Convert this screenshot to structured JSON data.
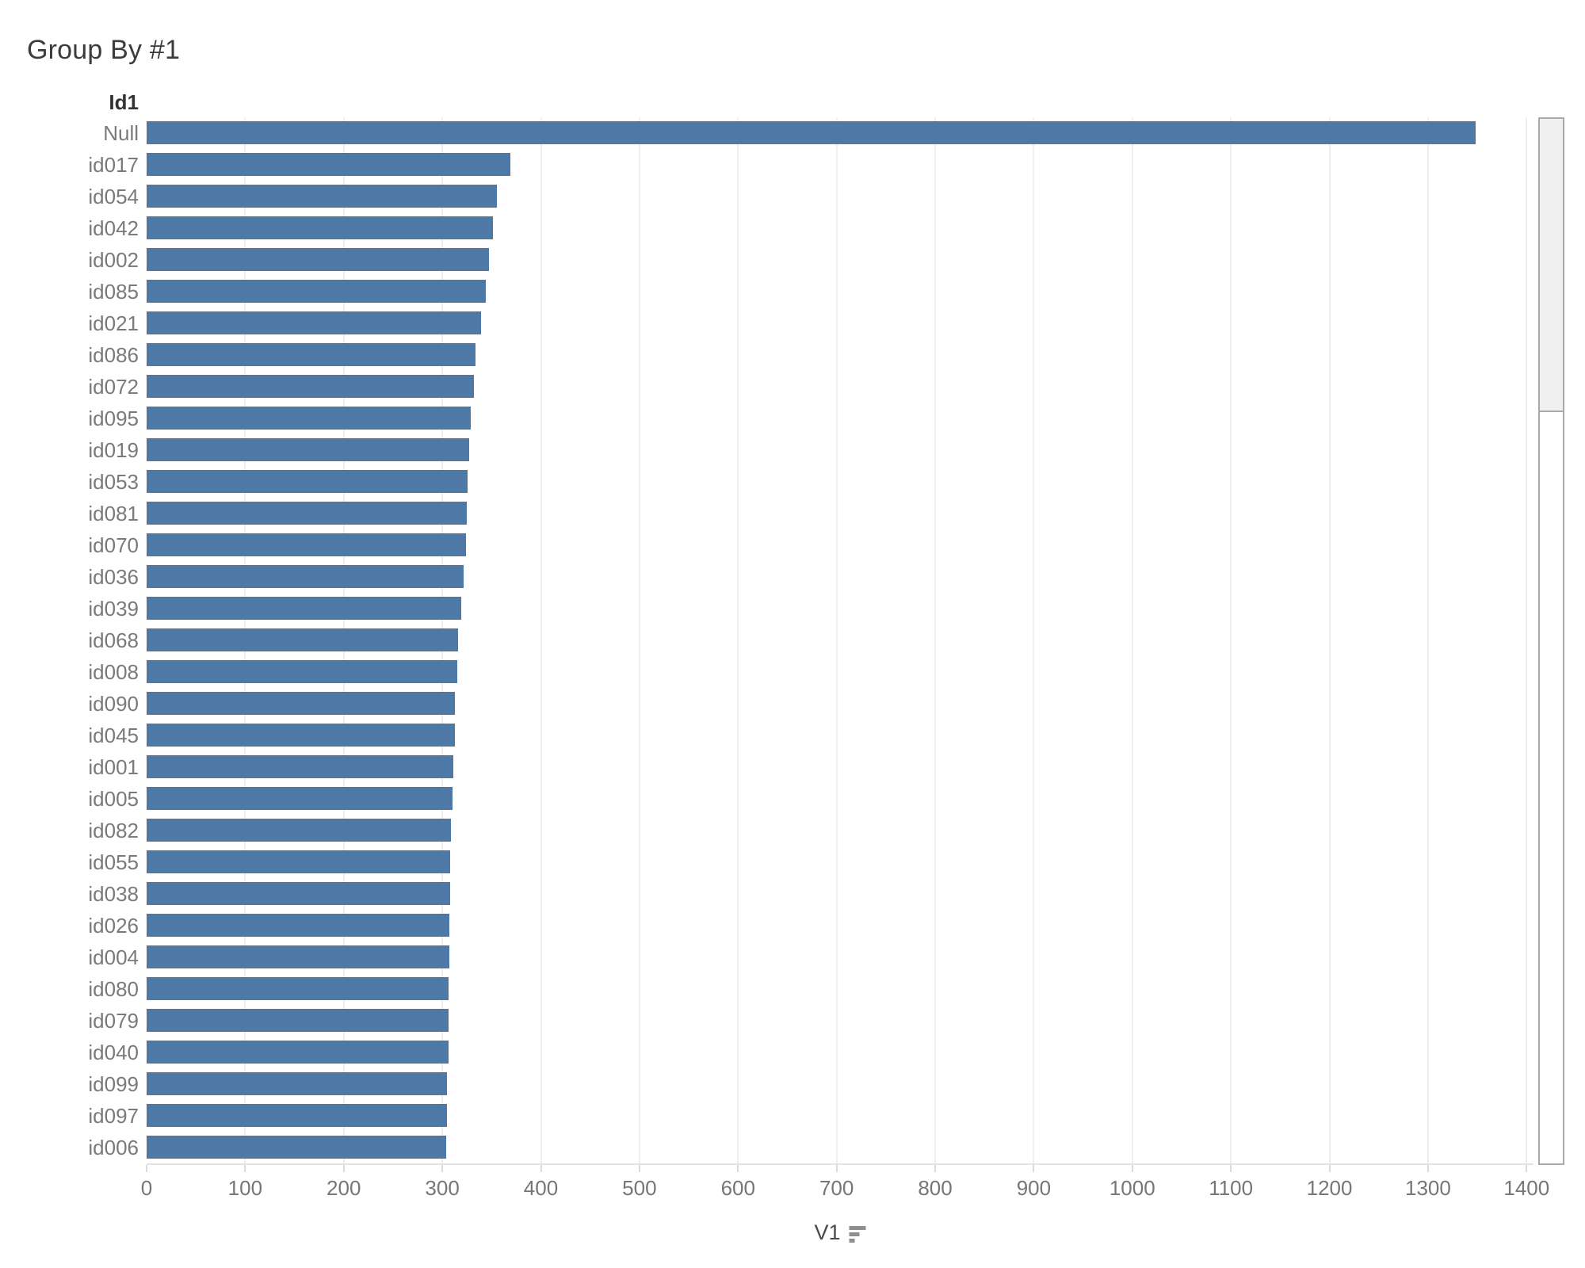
{
  "title": "Group By #1",
  "column_header": "Id1",
  "axis": {
    "label": "V1"
  },
  "chart_data": {
    "type": "bar",
    "orientation": "horizontal",
    "title": "Group By #1",
    "ylabel": "Id1",
    "xlabel": "V1",
    "xlim": [
      0,
      1407
    ],
    "ticks": [
      0,
      100,
      200,
      300,
      400,
      500,
      600,
      700,
      800,
      900,
      1000,
      1100,
      1200,
      1300,
      1400
    ],
    "grid": true,
    "legend": false,
    "bar_color": "#4e79a7",
    "categories": [
      "Null",
      "id017",
      "id054",
      "id042",
      "id002",
      "id085",
      "id021",
      "id086",
      "id072",
      "id095",
      "id019",
      "id053",
      "id081",
      "id070",
      "id036",
      "id039",
      "id068",
      "id008",
      "id090",
      "id045",
      "id001",
      "id005",
      "id082",
      "id055",
      "id038",
      "id026",
      "id004",
      "id080",
      "id079",
      "id040",
      "id099",
      "id097",
      "id006"
    ],
    "values": [
      1348,
      369,
      355,
      351,
      347,
      344,
      339,
      334,
      332,
      329,
      327,
      326,
      325,
      324,
      322,
      319,
      316,
      315,
      313,
      313,
      311,
      310,
      309,
      308,
      308,
      307,
      307,
      306,
      306,
      306,
      305,
      305,
      304
    ],
    "sort": "descending"
  }
}
